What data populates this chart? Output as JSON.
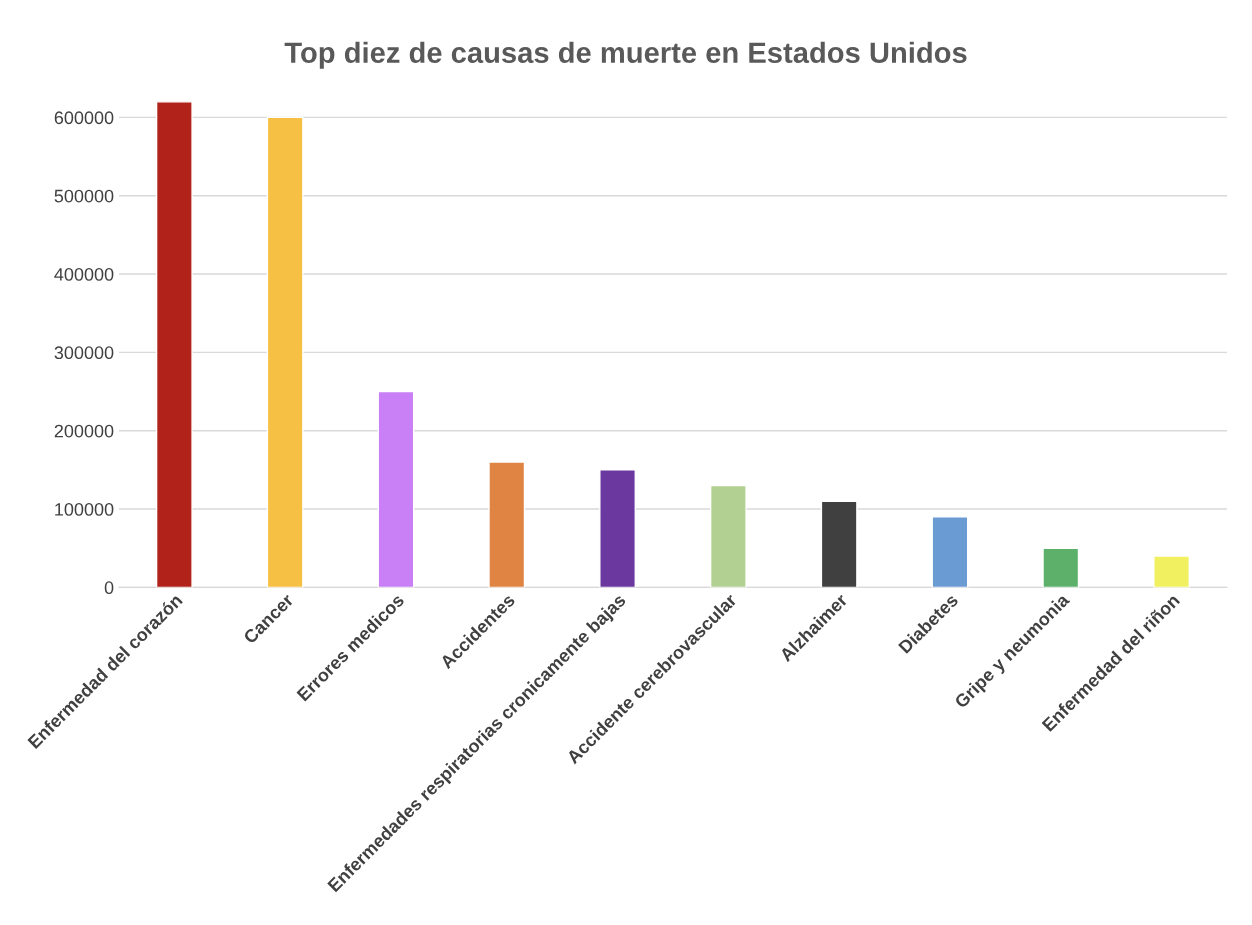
{
  "chart_data": {
    "type": "bar",
    "title": "Top diez de causas de muerte en Estados Unidos",
    "categories": [
      "Enfermedad del corazón",
      "Cancer",
      "Errores medicos",
      "Accidentes",
      "Enfermedades respiratorias cronicamente bajas",
      "Accidente cerebrovascular",
      "Alzhaimer",
      "Diabetes",
      "Gripe y neumonia",
      "Enfermedad del riñon"
    ],
    "values": [
      620000,
      600000,
      250000,
      160000,
      150000,
      130000,
      110000,
      90000,
      50000,
      40000
    ],
    "colors": [
      "#b0221a",
      "#f5c043",
      "#c97ff5",
      "#e08444",
      "#6a389e",
      "#b3d093",
      "#404040",
      "#6b9bd3",
      "#5db06a",
      "#f0f060"
    ],
    "ylim": [
      0,
      620000
    ],
    "yticks": [
      0,
      100000,
      200000,
      300000,
      400000,
      500000,
      600000
    ],
    "grid": "y"
  }
}
